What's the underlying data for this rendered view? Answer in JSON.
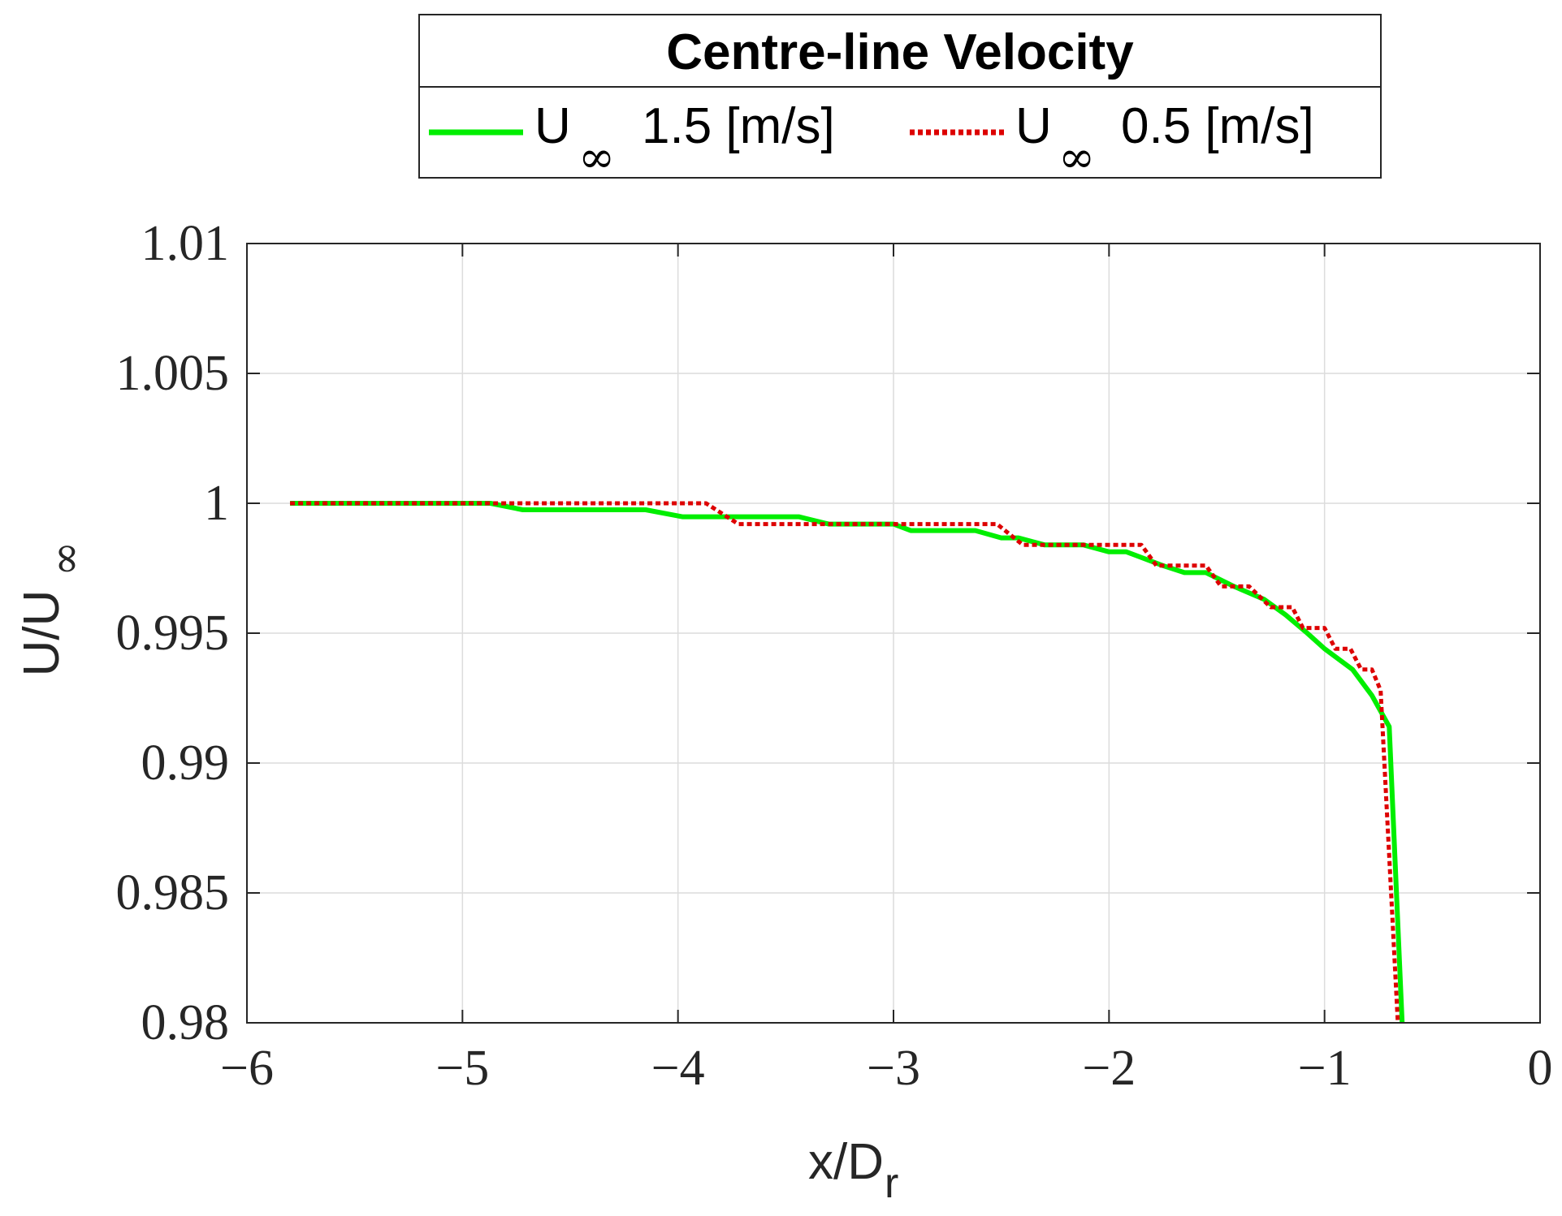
{
  "chart_data": {
    "type": "line",
    "legend": {
      "title": "Centre-line Velocity",
      "placement": "top-center",
      "entries": [
        {
          "base": "U",
          "sub": "∞",
          "text": "1.5 [m/s]",
          "color": "#00ee00",
          "style": "solid"
        },
        {
          "base": "U",
          "sub": "∞",
          "text": "0.5 [m/s]",
          "color": "#dd0000",
          "style": "dotted"
        }
      ]
    },
    "xlabel": {
      "base": "x/D",
      "sub": "r"
    },
    "ylabel": {
      "base": "U/U",
      "sub": "∞"
    },
    "xlim": [
      -6,
      0
    ],
    "ylim": [
      0.98,
      1.01
    ],
    "grid": true,
    "x_ticks": [
      {
        "value": -6,
        "label": "−6"
      },
      {
        "value": -5,
        "label": "−5"
      },
      {
        "value": -4,
        "label": "−4"
      },
      {
        "value": -3,
        "label": "−3"
      },
      {
        "value": -2,
        "label": "−2"
      },
      {
        "value": -1,
        "label": "−1"
      },
      {
        "value": 0,
        "label": "0"
      }
    ],
    "y_ticks": [
      {
        "value": 1.01,
        "label": "1.01"
      },
      {
        "value": 1.005,
        "label": "1.005"
      },
      {
        "value": 1.0,
        "label": "1"
      },
      {
        "value": 0.995,
        "label": "0.995"
      },
      {
        "value": 0.99,
        "label": "0.99"
      },
      {
        "value": 0.985,
        "label": "0.985"
      },
      {
        "value": 0.98,
        "label": "0.98"
      }
    ],
    "series": [
      {
        "name": "U∞ 1.5 [m/s]",
        "color": "#00ee00",
        "style": "solid",
        "points": [
          [
            -5.8,
            1.0
          ],
          [
            -4.87,
            1.0
          ],
          [
            -4.72,
            0.99975
          ],
          [
            -4.15,
            0.99975
          ],
          [
            -3.98,
            0.99948
          ],
          [
            -3.44,
            0.99948
          ],
          [
            -3.3,
            0.9992
          ],
          [
            -3.0,
            0.9992
          ],
          [
            -2.92,
            0.99895
          ],
          [
            -2.62,
            0.99895
          ],
          [
            -2.5,
            0.99867
          ],
          [
            -2.42,
            0.99867
          ],
          [
            -2.3,
            0.9984
          ],
          [
            -2.12,
            0.9984
          ],
          [
            -2.0,
            0.99813
          ],
          [
            -1.92,
            0.99813
          ],
          [
            -1.75,
            0.9976
          ],
          [
            -1.65,
            0.99733
          ],
          [
            -1.55,
            0.99733
          ],
          [
            -1.42,
            0.9968
          ],
          [
            -1.28,
            0.9963
          ],
          [
            -1.18,
            0.9957
          ],
          [
            -1.08,
            0.995
          ],
          [
            -1.0,
            0.9944
          ],
          [
            -0.87,
            0.9936
          ],
          [
            -0.78,
            0.9926
          ],
          [
            -0.7,
            0.9914
          ],
          [
            -0.64,
            0.98
          ]
        ]
      },
      {
        "name": "U∞ 0.5 [m/s]",
        "color": "#dd0000",
        "style": "dotted",
        "points": [
          [
            -5.8,
            1.0
          ],
          [
            -3.87,
            1.0
          ],
          [
            -3.72,
            0.9992
          ],
          [
            -2.52,
            0.9992
          ],
          [
            -2.4,
            0.9984
          ],
          [
            -1.85,
            0.9984
          ],
          [
            -1.78,
            0.9976
          ],
          [
            -1.55,
            0.9976
          ],
          [
            -1.48,
            0.9968
          ],
          [
            -1.35,
            0.9968
          ],
          [
            -1.25,
            0.996
          ],
          [
            -1.15,
            0.996
          ],
          [
            -1.1,
            0.9952
          ],
          [
            -1.0,
            0.9952
          ],
          [
            -0.95,
            0.9944
          ],
          [
            -0.88,
            0.9944
          ],
          [
            -0.83,
            0.9936
          ],
          [
            -0.78,
            0.9936
          ],
          [
            -0.74,
            0.9928
          ],
          [
            -0.66,
            0.98
          ]
        ]
      }
    ]
  }
}
